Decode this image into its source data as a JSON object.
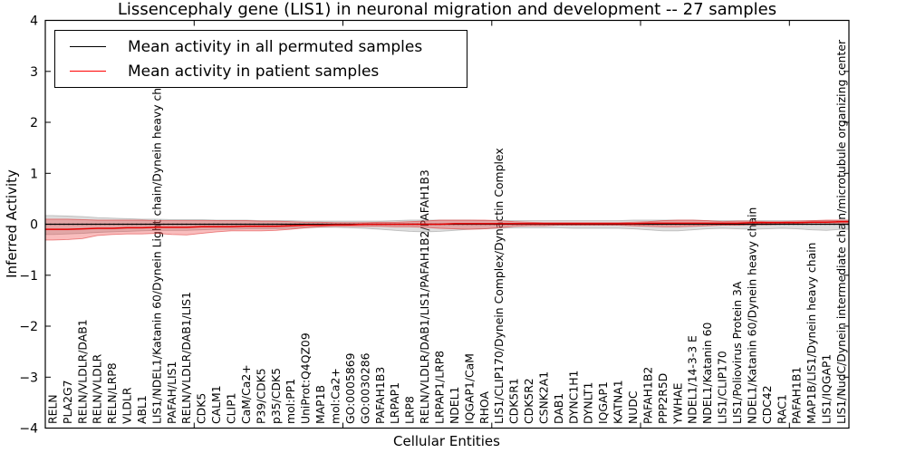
{
  "title": "Lissencephaly gene (LIS1) in neuronal migration and development -- 27 samples",
  "axes": {
    "ylabel": "Inferred Activity",
    "xlabel": "Cellular Entities"
  },
  "legend": {
    "position": "upper left",
    "entries": [
      {
        "label": "Mean activity in all permuted samples",
        "color": "#000000"
      },
      {
        "label": "Mean activity in patient samples",
        "color": "#ff0000"
      }
    ]
  },
  "chart_data": {
    "type": "line",
    "title": "Lissencephaly gene (LIS1) in neuronal migration and development -- 27 samples",
    "xlabel": "Cellular Entities",
    "ylabel": "Inferred Activity",
    "ylim": [
      -4,
      4
    ],
    "yticks": [
      4,
      3,
      2,
      1,
      0,
      -1,
      -2,
      -3,
      -4
    ],
    "ytick_labels": [
      "4",
      "3",
      "2",
      "1",
      "0",
      "−1",
      "−2",
      "−3",
      "−4"
    ],
    "xticks": [
      10,
      20,
      30,
      40,
      50
    ],
    "grid": false,
    "zero_line": true,
    "categories": [
      "RELN",
      "PLA2G7",
      "RELN/VLDLR/DAB1",
      "RELN/VLDLR",
      "RELN/LRP8",
      "VLDLR",
      "ABL1",
      "LIS1/NDEL1/Katanin 60/Dynein Light chain/Dynein heavy chain",
      "PAFAH/LIS1",
      "RELN/VLDLR/DAB1/LIS1",
      "CDK5",
      "CALM1",
      "CLIP1",
      "CaM/Ca2+",
      "P39/CDK5",
      "p35/CDK5",
      "mol:PP1",
      "UniProt:Q4QZ09",
      "MAP1B",
      "mol:Ca2+",
      "GO:0005869",
      "GO:0030286",
      "PAFAH1B3",
      "LRPAP1",
      "LRP8",
      "RELN/VLDLR/DAB1/LIS1/PAFAH1B2/PAFAH1B3",
      "LRPAP1/LRP8",
      "NDEL1",
      "IQGAP1/CaM",
      "RHOA",
      "LIS1/CLIP170/Dynein Complex/Dynactin Complex",
      "CDK5R1",
      "CDK5R2",
      "CSNK2A1",
      "DAB1",
      "DYNC1H1",
      "DYNLT1",
      "IQGAP1",
      "KATNA1",
      "NUDC",
      "PAFAH1B2",
      "PPP2R5D",
      "YWHAE",
      "NDEL1/14-3-3 E",
      "NDEL1/Katanin 60",
      "LIS1/CLIP170",
      "LIS1/Poliovirus Protein 3A",
      "NDEL1/Katanin 60/Dynein heavy chain",
      "CDC42",
      "RAC1",
      "PAFAH1B1",
      "MAP1B/LIS1/Dynein heavy chain",
      "LIS1/IQGAP1",
      "LIS1/NudC/Dynein intermediate chain/microtubule organizing center"
    ],
    "series": [
      {
        "name": "Mean activity in all permuted samples",
        "color": "#000000",
        "width": 1.2,
        "values": [
          0,
          0,
          0,
          0,
          0,
          0,
          0,
          0,
          0,
          0,
          0,
          0,
          0,
          0,
          0,
          0,
          0,
          0,
          0,
          0,
          0,
          0,
          0,
          0,
          0,
          0,
          0,
          0,
          0,
          0,
          0,
          0,
          0,
          0,
          0,
          0,
          0,
          0,
          0,
          0,
          0,
          0,
          0,
          0,
          0,
          0,
          0,
          0,
          0,
          0,
          0,
          0,
          0,
          0
        ]
      },
      {
        "name": "Mean activity in patient samples",
        "color": "#e60000",
        "width": 1.5,
        "values": [
          -0.1,
          -0.1,
          -0.09,
          -0.08,
          -0.08,
          -0.07,
          -0.07,
          -0.06,
          -0.06,
          -0.06,
          -0.05,
          -0.05,
          -0.05,
          -0.04,
          -0.04,
          -0.04,
          -0.03,
          -0.02,
          -0.02,
          -0.01,
          -0.01,
          0.0,
          0.0,
          0.0,
          0.0,
          0.0,
          0.0,
          0.01,
          0.01,
          0.01,
          0.01,
          0.01,
          0.01,
          0.01,
          0.01,
          0.01,
          0.01,
          0.01,
          0.01,
          0.01,
          0.02,
          0.02,
          0.02,
          0.02,
          0.02,
          0.02,
          0.02,
          0.03,
          0.03,
          0.03,
          0.03,
          0.04,
          0.04,
          0.05
        ]
      }
    ],
    "bands": [
      {
        "name": "permuted samples range",
        "fill": "rgba(130,130,130,0.27)",
        "stroke": "rgba(130,130,130,0.45)",
        "lo": [
          -0.2,
          -0.19,
          -0.18,
          -0.16,
          -0.15,
          -0.14,
          -0.13,
          -0.12,
          -0.12,
          -0.12,
          -0.11,
          -0.1,
          -0.1,
          -0.09,
          -0.09,
          -0.09,
          -0.08,
          -0.07,
          -0.06,
          -0.06,
          -0.07,
          -0.08,
          -0.1,
          -0.12,
          -0.14,
          -0.15,
          -0.14,
          -0.12,
          -0.1,
          -0.09,
          -0.08,
          -0.07,
          -0.07,
          -0.07,
          -0.07,
          -0.08,
          -0.08,
          -0.08,
          -0.08,
          -0.09,
          -0.11,
          -0.13,
          -0.13,
          -0.11,
          -0.09,
          -0.08,
          -0.09,
          -0.1,
          -0.09,
          -0.08,
          -0.09,
          -0.11,
          -0.12,
          -0.1
        ],
        "hi": [
          0.17,
          0.16,
          0.15,
          0.13,
          0.12,
          0.11,
          0.1,
          0.1,
          0.09,
          0.09,
          0.09,
          0.08,
          0.08,
          0.08,
          0.07,
          0.07,
          0.07,
          0.06,
          0.06,
          0.06,
          0.06,
          0.06,
          0.06,
          0.07,
          0.08,
          0.08,
          0.08,
          0.08,
          0.08,
          0.07,
          0.07,
          0.07,
          0.07,
          0.07,
          0.07,
          0.07,
          0.07,
          0.07,
          0.07,
          0.08,
          0.08,
          0.08,
          0.08,
          0.08,
          0.07,
          0.07,
          0.07,
          0.07,
          0.07,
          0.07,
          0.07,
          0.07,
          0.07,
          0.07
        ]
      },
      {
        "name": "patient samples range",
        "fill": "rgba(238,55,55,0.33)",
        "stroke": "rgba(220,40,40,0.55)",
        "lo": [
          -0.31,
          -0.3,
          -0.28,
          -0.22,
          -0.2,
          -0.19,
          -0.19,
          -0.18,
          -0.2,
          -0.21,
          -0.18,
          -0.15,
          -0.13,
          -0.13,
          -0.13,
          -0.12,
          -0.1,
          -0.07,
          -0.05,
          -0.04,
          -0.04,
          -0.04,
          -0.04,
          -0.05,
          -0.05,
          -0.06,
          -0.08,
          -0.09,
          -0.1,
          -0.09,
          -0.07,
          -0.04,
          -0.03,
          -0.03,
          -0.02,
          -0.02,
          -0.02,
          -0.02,
          -0.02,
          -0.03,
          -0.04,
          -0.05,
          -0.05,
          -0.04,
          -0.03,
          -0.02,
          -0.02,
          -0.01,
          -0.01,
          0.0,
          0.0,
          0.0,
          0.0,
          0.0
        ],
        "hi": [
          0.1,
          0.1,
          0.09,
          0.08,
          0.08,
          0.08,
          0.08,
          0.07,
          0.07,
          0.07,
          0.07,
          0.07,
          0.07,
          0.07,
          0.06,
          0.06,
          0.05,
          0.04,
          0.04,
          0.03,
          0.03,
          0.03,
          0.04,
          0.04,
          0.05,
          0.06,
          0.08,
          0.08,
          0.08,
          0.08,
          0.07,
          0.05,
          0.04,
          0.03,
          0.03,
          0.03,
          0.03,
          0.03,
          0.03,
          0.04,
          0.05,
          0.07,
          0.08,
          0.08,
          0.07,
          0.05,
          0.06,
          0.06,
          0.05,
          0.05,
          0.06,
          0.07,
          0.08,
          0.08
        ]
      }
    ]
  }
}
